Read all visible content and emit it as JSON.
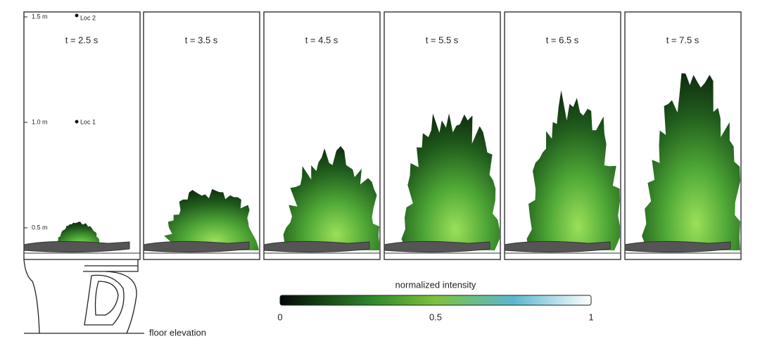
{
  "figure": {
    "panels": [
      {
        "label": "t = 2.5 s"
      },
      {
        "label": "t = 3.5 s"
      },
      {
        "label": "t = 4.5 s"
      },
      {
        "label": "t = 5.5 s"
      },
      {
        "label": "t = 6.5 s"
      },
      {
        "label": "t = 7.5 s"
      }
    ],
    "height_labels": [
      "1.5 m",
      "1.0 m",
      "0.5 m"
    ],
    "locations": [
      "Loc 2",
      "Loc 1"
    ],
    "floor_label": "floor elevation",
    "colorbar": {
      "title": "normalized intensity",
      "lim": [
        0,
        1
      ],
      "ticks": [
        0,
        0.5,
        1
      ]
    }
  }
}
